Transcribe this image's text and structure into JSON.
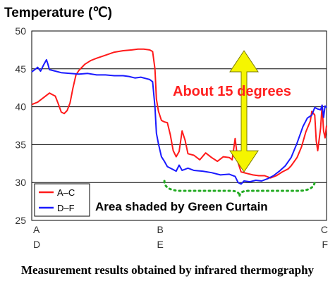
{
  "chart_data": {
    "type": "line",
    "title": "Temperature (℃)",
    "ylim": [
      25,
      50
    ],
    "yticks": [
      "50",
      "45",
      "40",
      "35",
      "30",
      "25"
    ],
    "xlim": [
      0,
      100
    ],
    "x_ticks": [
      {
        "x": 0,
        "top": "A",
        "bottom": "D"
      },
      {
        "x": 42,
        "top": "B",
        "bottom": "E"
      },
      {
        "x": 100,
        "top": "C",
        "bottom": "F"
      }
    ],
    "grid": true,
    "legend_position": "bottom-left",
    "series": [
      {
        "name": "A–C",
        "color": "#ff1a1a",
        "points": [
          [
            0,
            40.3
          ],
          [
            2,
            40.6
          ],
          [
            4,
            41.2
          ],
          [
            6,
            41.8
          ],
          [
            8,
            41.4
          ],
          [
            9,
            40.4
          ],
          [
            10,
            39.3
          ],
          [
            11,
            39.1
          ],
          [
            12,
            39.5
          ],
          [
            13,
            40.5
          ],
          [
            14,
            42.5
          ],
          [
            15,
            44.2
          ],
          [
            16,
            44.8
          ],
          [
            18,
            45.6
          ],
          [
            20,
            46.1
          ],
          [
            22,
            46.4
          ],
          [
            25,
            46.8
          ],
          [
            28,
            47.2
          ],
          [
            31,
            47.4
          ],
          [
            34,
            47.5
          ],
          [
            36,
            47.6
          ],
          [
            38,
            47.6
          ],
          [
            40,
            47.5
          ],
          [
            41,
            47.3
          ],
          [
            41.8,
            45.0
          ],
          [
            42.3,
            41.0
          ],
          [
            43,
            39.4
          ],
          [
            44,
            38.2
          ],
          [
            45,
            38.0
          ],
          [
            46,
            37.9
          ],
          [
            47,
            36.3
          ],
          [
            48,
            34.2
          ],
          [
            49,
            33.4
          ],
          [
            50,
            34.1
          ],
          [
            51,
            36.8
          ],
          [
            52,
            35.6
          ],
          [
            53,
            33.8
          ],
          [
            55,
            33.6
          ],
          [
            57,
            33.0
          ],
          [
            59,
            33.9
          ],
          [
            61,
            33.3
          ],
          [
            63,
            32.8
          ],
          [
            65,
            33.4
          ],
          [
            67,
            33.3
          ],
          [
            68,
            33.0
          ],
          [
            69,
            35.8
          ],
          [
            70,
            32.6
          ],
          [
            71,
            31.4
          ],
          [
            73,
            31.2
          ],
          [
            75,
            31.0
          ],
          [
            77,
            30.9
          ],
          [
            79,
            30.9
          ],
          [
            81,
            30.6
          ],
          [
            83,
            30.9
          ],
          [
            85,
            31.4
          ],
          [
            87,
            31.8
          ],
          [
            88,
            32.2
          ],
          [
            90,
            33.3
          ],
          [
            91.5,
            34.7
          ],
          [
            93,
            36.7
          ],
          [
            94.5,
            38.1
          ],
          [
            95,
            39.4
          ],
          [
            96,
            38.9
          ],
          [
            96.5,
            35.5
          ],
          [
            97,
            34.2
          ],
          [
            98,
            37.2
          ],
          [
            98.5,
            40.2
          ],
          [
            99,
            36.8
          ],
          [
            99.5,
            35.9
          ],
          [
            100,
            37.5
          ]
        ]
      },
      {
        "name": "D–F",
        "color": "#1a1aff",
        "points": [
          [
            0,
            44.6
          ],
          [
            1,
            44.9
          ],
          [
            2,
            45.2
          ],
          [
            3,
            44.7
          ],
          [
            4,
            45.5
          ],
          [
            5,
            46.2
          ],
          [
            5.5,
            45.6
          ],
          [
            6,
            44.9
          ],
          [
            8,
            44.7
          ],
          [
            10,
            44.5
          ],
          [
            13,
            44.4
          ],
          [
            16,
            44.3
          ],
          [
            19,
            44.4
          ],
          [
            22,
            44.2
          ],
          [
            25,
            44.2
          ],
          [
            28,
            44.1
          ],
          [
            31,
            44.1
          ],
          [
            33,
            44.0
          ],
          [
            35,
            43.8
          ],
          [
            37,
            43.9
          ],
          [
            39,
            43.7
          ],
          [
            40,
            43.6
          ],
          [
            41,
            43.3
          ],
          [
            41.8,
            40.0
          ],
          [
            42.3,
            36.5
          ],
          [
            43,
            35.1
          ],
          [
            44,
            33.4
          ],
          [
            45,
            32.8
          ],
          [
            46,
            32.1
          ],
          [
            47,
            31.9
          ],
          [
            48,
            31.7
          ],
          [
            49,
            31.5
          ],
          [
            50,
            32.3
          ],
          [
            51,
            31.6
          ],
          [
            53,
            31.9
          ],
          [
            55,
            31.6
          ],
          [
            58,
            31.5
          ],
          [
            61,
            31.3
          ],
          [
            64,
            31.0
          ],
          [
            67,
            31.1
          ],
          [
            69,
            30.8
          ],
          [
            70,
            30.0
          ],
          [
            71,
            29.8
          ],
          [
            72,
            30.2
          ],
          [
            74,
            30.1
          ],
          [
            76,
            30.3
          ],
          [
            78,
            30.2
          ],
          [
            80,
            30.5
          ],
          [
            82,
            30.9
          ],
          [
            84,
            31.5
          ],
          [
            86,
            32.2
          ],
          [
            88,
            33.3
          ],
          [
            90,
            35.2
          ],
          [
            92,
            37.4
          ],
          [
            93.5,
            38.5
          ],
          [
            95,
            38.9
          ],
          [
            96,
            39.9
          ],
          [
            97,
            39.7
          ],
          [
            98,
            39.6
          ],
          [
            98.5,
            40.2
          ],
          [
            99,
            38.6
          ],
          [
            99.5,
            40.1
          ],
          [
            100,
            39.9
          ]
        ]
      }
    ],
    "annotations": [
      {
        "text": "About 15 degrees",
        "color": "#ff2020"
      },
      {
        "text": "Area shaded by Green Curtain",
        "color": "#000000"
      }
    ],
    "double_arrow": {
      "color": "#f5f500",
      "edge": "#7a7a00",
      "x": 72,
      "from": 47.4,
      "to": 31.4
    },
    "bracket": {
      "color": "#22aa22",
      "x_from": 45,
      "x_to": 96,
      "y": 30.2
    }
  },
  "caption": "Measurement results obtained by infrared thermography"
}
